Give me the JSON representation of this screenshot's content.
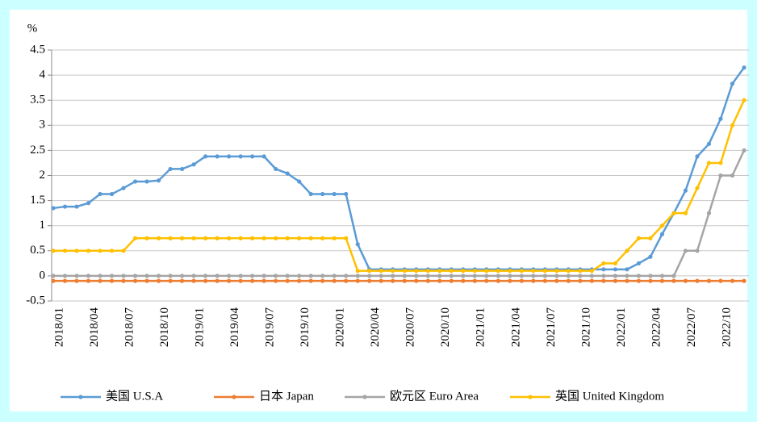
{
  "chart_data": {
    "type": "line",
    "y_label": "%",
    "categories": [
      "2018/01",
      null,
      null,
      "2018/04",
      null,
      null,
      "2018/07",
      null,
      null,
      "2018/10",
      null,
      null,
      "2019/01",
      null,
      null,
      "2019/04",
      null,
      null,
      "2019/07",
      null,
      null,
      "2019/10",
      null,
      null,
      "2020/01",
      null,
      null,
      "2020/04",
      null,
      null,
      "2020/07",
      null,
      null,
      "2020/10",
      null,
      null,
      "2021/01",
      null,
      null,
      "2021/04",
      null,
      null,
      "2021/07",
      null,
      null,
      "2021/10",
      null,
      null,
      "2022/01",
      null,
      null,
      "2022/04",
      null,
      null,
      "2022/07",
      null,
      null,
      "2022/10",
      null,
      null
    ],
    "series": [
      {
        "name": "美国 U.S.A",
        "color": "#5b9bd5",
        "values": [
          1.35,
          1.38,
          1.38,
          1.45,
          1.63,
          1.63,
          1.75,
          1.88,
          1.88,
          1.9,
          2.13,
          2.13,
          2.22,
          2.38,
          2.38,
          2.38,
          2.38,
          2.38,
          2.38,
          2.13,
          2.04,
          1.88,
          1.63,
          1.63,
          1.63,
          1.63,
          0.63,
          0.13,
          0.13,
          0.13,
          0.13,
          0.13,
          0.13,
          0.13,
          0.13,
          0.13,
          0.13,
          0.13,
          0.13,
          0.13,
          0.13,
          0.13,
          0.13,
          0.13,
          0.13,
          0.13,
          0.13,
          0.13,
          0.13,
          0.13,
          0.25,
          0.38,
          0.83,
          1.25,
          1.7,
          2.38,
          2.63,
          3.13,
          3.83,
          4.15
        ]
      },
      {
        "name": "日本 Japan",
        "color": "#ed7d31",
        "values": [
          -0.1,
          -0.1,
          -0.1,
          -0.1,
          -0.1,
          -0.1,
          -0.1,
          -0.1,
          -0.1,
          -0.1,
          -0.1,
          -0.1,
          -0.1,
          -0.1,
          -0.1,
          -0.1,
          -0.1,
          -0.1,
          -0.1,
          -0.1,
          -0.1,
          -0.1,
          -0.1,
          -0.1,
          -0.1,
          -0.1,
          -0.1,
          -0.1,
          -0.1,
          -0.1,
          -0.1,
          -0.1,
          -0.1,
          -0.1,
          -0.1,
          -0.1,
          -0.1,
          -0.1,
          -0.1,
          -0.1,
          -0.1,
          -0.1,
          -0.1,
          -0.1,
          -0.1,
          -0.1,
          -0.1,
          -0.1,
          -0.1,
          -0.1,
          -0.1,
          -0.1,
          -0.1,
          -0.1,
          -0.1,
          -0.1,
          -0.1,
          -0.1,
          -0.1,
          -0.1
        ]
      },
      {
        "name": "欧元区 Euro Area",
        "color": "#a5a5a5",
        "values": [
          0,
          0,
          0,
          0,
          0,
          0,
          0,
          0,
          0,
          0,
          0,
          0,
          0,
          0,
          0,
          0,
          0,
          0,
          0,
          0,
          0,
          0,
          0,
          0,
          0,
          0,
          0,
          0,
          0,
          0,
          0,
          0,
          0,
          0,
          0,
          0,
          0,
          0,
          0,
          0,
          0,
          0,
          0,
          0,
          0,
          0,
          0,
          0,
          0,
          0,
          0,
          0,
          0,
          0,
          0.5,
          0.5,
          1.25,
          2,
          2,
          2.5
        ]
      },
      {
        "name": "英国 United Kingdom",
        "color": "#ffc000",
        "values": [
          0.5,
          0.5,
          0.5,
          0.5,
          0.5,
          0.5,
          0.5,
          0.75,
          0.75,
          0.75,
          0.75,
          0.75,
          0.75,
          0.75,
          0.75,
          0.75,
          0.75,
          0.75,
          0.75,
          0.75,
          0.75,
          0.75,
          0.75,
          0.75,
          0.75,
          0.75,
          0.1,
          0.1,
          0.1,
          0.1,
          0.1,
          0.1,
          0.1,
          0.1,
          0.1,
          0.1,
          0.1,
          0.1,
          0.1,
          0.1,
          0.1,
          0.1,
          0.1,
          0.1,
          0.1,
          0.1,
          0.1,
          0.25,
          0.25,
          0.5,
          0.75,
          0.75,
          1,
          1.25,
          1.25,
          1.75,
          2.25,
          2.25,
          3,
          3.5
        ]
      }
    ],
    "ylim": [
      -0.5,
      4.5
    ],
    "yticks": [
      -0.5,
      0,
      0.5,
      1,
      1.5,
      2,
      2.5,
      3,
      3.5,
      4,
      4.5
    ],
    "grid": true
  }
}
